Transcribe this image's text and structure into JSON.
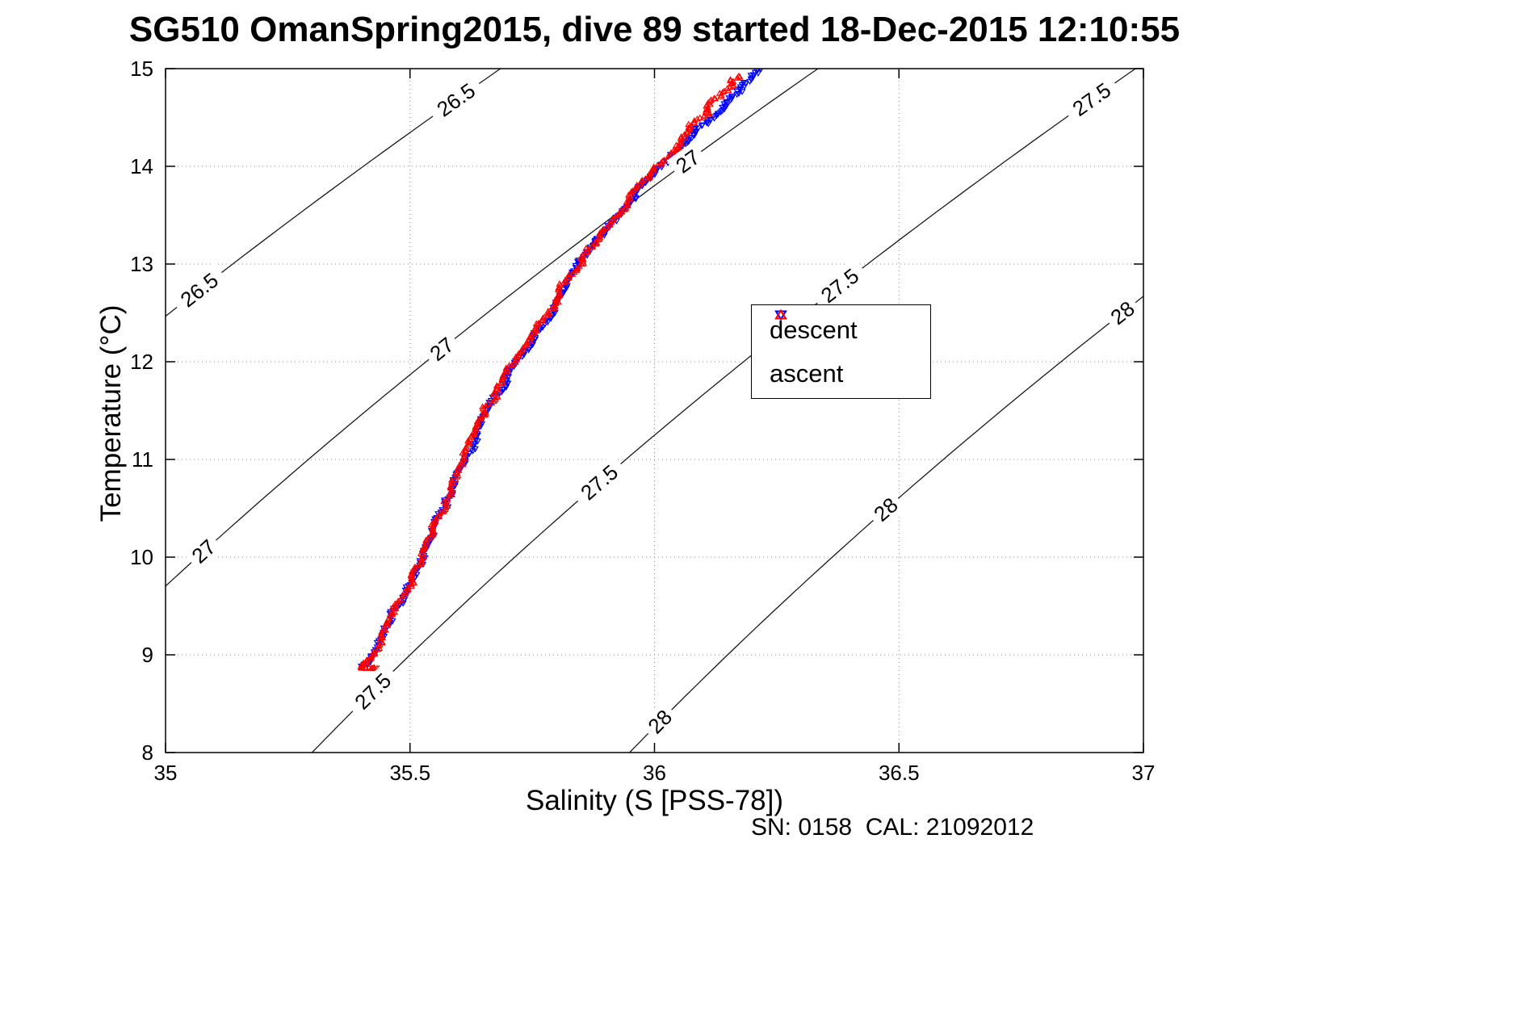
{
  "figure": {
    "title": "SG510 OmanSpring2015, dive 89 started 18-Dec-2015 12:10:55",
    "xlabel": "Salinity (S [PSS-78])",
    "ylabel": "Temperature (°C)",
    "footnote": "SN: 0158  CAL: 21092012",
    "background": "#ffffff"
  },
  "legend": {
    "items": [
      {
        "label": "descent",
        "color": "#0000ff",
        "marker": "triangle-down"
      },
      {
        "label": "ascent",
        "color": "#ff0000",
        "marker": "triangle-up"
      }
    ]
  },
  "chart_data": {
    "type": "scatter",
    "title": "SG510 OmanSpring2015, dive 89 started 18-Dec-2015 12:10:55",
    "xlabel": "Salinity (S [PSS-78])",
    "ylabel": "Temperature (°C)",
    "footnote": "SN: 0158  CAL: 21092012",
    "xlim": [
      35,
      37
    ],
    "ylim": [
      8,
      15
    ],
    "x_ticks": [
      35,
      35.5,
      36,
      36.5,
      37
    ],
    "x_tick_labels": [
      "35",
      "35.5",
      "36",
      "36.5",
      "37"
    ],
    "y_ticks": [
      8,
      9,
      10,
      11,
      12,
      13,
      14,
      15
    ],
    "y_tick_labels": [
      "8",
      "9",
      "10",
      "11",
      "12",
      "13",
      "14",
      "15"
    ],
    "grid": "dotted",
    "legend_position": "upper-middle-right",
    "series": [
      {
        "name": "descent",
        "color": "#0000ff",
        "marker": "triangle-down",
        "n_points": 420,
        "profile_TS": [
          [
            8.88,
            35.402
          ],
          [
            8.95,
            35.418
          ],
          [
            9.0,
            35.425
          ],
          [
            9.25,
            35.447
          ],
          [
            9.5,
            35.474
          ],
          [
            9.75,
            35.5
          ],
          [
            10.0,
            35.524
          ],
          [
            10.25,
            35.549
          ],
          [
            10.5,
            35.573
          ],
          [
            10.75,
            35.595
          ],
          [
            11.0,
            35.616
          ],
          [
            11.25,
            35.637
          ],
          [
            11.5,
            35.657
          ],
          [
            11.75,
            35.688
          ],
          [
            12.0,
            35.718
          ],
          [
            12.25,
            35.754
          ],
          [
            12.5,
            35.788
          ],
          [
            12.75,
            35.817
          ],
          [
            13.0,
            35.846
          ],
          [
            13.25,
            35.888
          ],
          [
            13.5,
            35.93
          ],
          [
            13.75,
            35.968
          ],
          [
            14.0,
            36.019
          ],
          [
            14.25,
            36.064
          ],
          [
            14.5,
            36.115
          ],
          [
            14.75,
            36.165
          ],
          [
            15.0,
            36.214
          ]
        ]
      },
      {
        "name": "ascent",
        "color": "#ff0000",
        "marker": "triangle-up",
        "n_points": 430,
        "profile_TS": [
          [
            8.86,
            35.452
          ],
          [
            8.87,
            35.392
          ],
          [
            8.92,
            35.41
          ],
          [
            9.0,
            35.423
          ],
          [
            9.25,
            35.445
          ],
          [
            9.5,
            35.471
          ],
          [
            9.75,
            35.497
          ],
          [
            10.0,
            35.521
          ],
          [
            10.25,
            35.545
          ],
          [
            10.5,
            35.567
          ],
          [
            10.75,
            35.588
          ],
          [
            11.0,
            35.609
          ],
          [
            11.25,
            35.63
          ],
          [
            11.5,
            35.651
          ],
          [
            11.75,
            35.682
          ],
          [
            12.0,
            35.714
          ],
          [
            12.25,
            35.751
          ],
          [
            12.5,
            35.785
          ],
          [
            12.75,
            35.814
          ],
          [
            13.0,
            35.843
          ],
          [
            13.25,
            35.884
          ],
          [
            13.5,
            35.922
          ],
          [
            13.6,
            35.944
          ],
          [
            13.75,
            35.956
          ],
          [
            14.0,
            36.008
          ],
          [
            14.25,
            36.05
          ],
          [
            14.5,
            36.094
          ],
          [
            14.75,
            36.14
          ],
          [
            14.93,
            36.176
          ]
        ]
      }
    ],
    "density_contours": {
      "description": "potential density sigma-theta isolines",
      "levels": [
        26.5,
        27,
        27.5,
        28
      ],
      "labels": [
        {
          "text": "26.5",
          "S": 35.594,
          "T": 14.64
        },
        {
          "text": "26.5",
          "S": 35.069,
          "T": 12.75
        },
        {
          "text": "27",
          "S": 36.068,
          "T": 14.05
        },
        {
          "text": "27",
          "S": 35.565,
          "T": 12.13
        },
        {
          "text": "27",
          "S": 35.078,
          "T": 10.08
        },
        {
          "text": "27.5",
          "S": 36.894,
          "T": 14.64
        },
        {
          "text": "27.5",
          "S": 36.379,
          "T": 12.85
        },
        {
          "text": "27.5",
          "S": 35.887,
          "T": 10.77
        },
        {
          "text": "27.5",
          "S": 35.424,
          "T": 8.64
        },
        {
          "text": "28",
          "S": 36.957,
          "T": 12.54
        },
        {
          "text": "28",
          "S": 36.473,
          "T": 10.55
        },
        {
          "text": "28",
          "S": 36.011,
          "T": 8.4
        }
      ]
    }
  }
}
